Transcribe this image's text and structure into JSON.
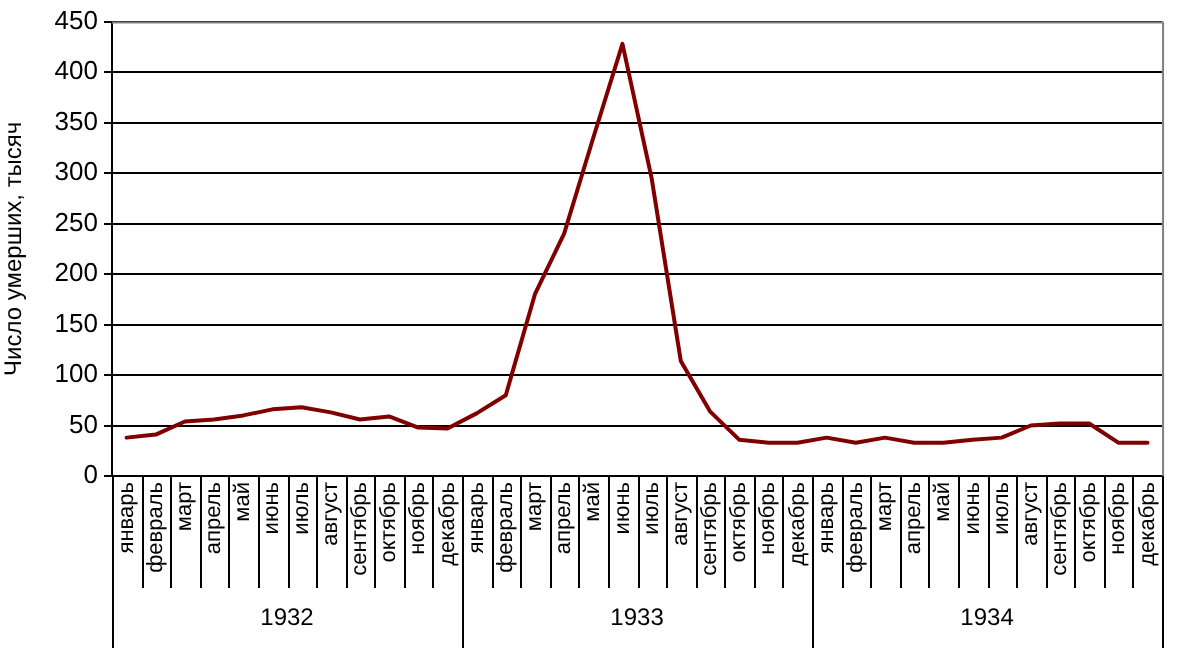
{
  "chart_data": {
    "type": "line",
    "ylabel": "Число умерших, тысяч",
    "categories": [
      "январь",
      "февраль",
      "март",
      "апрель",
      "май",
      "июнь",
      "июль",
      "август",
      "сентябрь",
      "октябрь",
      "ноябрь",
      "декабрь",
      "январь",
      "февраль",
      "март",
      "апрель",
      "май",
      "июнь",
      "июль",
      "август",
      "сентябрь",
      "октябрь",
      "ноябрь",
      "декабрь",
      "январь",
      "февраль",
      "март",
      "апрель",
      "май",
      "июнь",
      "июль",
      "август",
      "сентябрь",
      "октябрь",
      "ноябрь",
      "декабрь"
    ],
    "series": [
      {
        "color": "#800000",
        "values": [
          38,
          41,
          54,
          56,
          60,
          66,
          68,
          63,
          56,
          59,
          48,
          47,
          62,
          80,
          180,
          240,
          335,
          428,
          295,
          114,
          64,
          36,
          33,
          33,
          38,
          33,
          38,
          33,
          33,
          36,
          38,
          50,
          52,
          52,
          33,
          33
        ]
      }
    ],
    "annotations": [
      "1932",
      "1933",
      "1934"
    ],
    "ylim": [
      0,
      450
    ],
    "yticks": [
      0,
      50,
      100,
      150,
      200,
      250,
      300,
      350,
      400,
      450
    ],
    "grid": "y",
    "legend": false,
    "marker": "none",
    "line_style": "solid"
  }
}
